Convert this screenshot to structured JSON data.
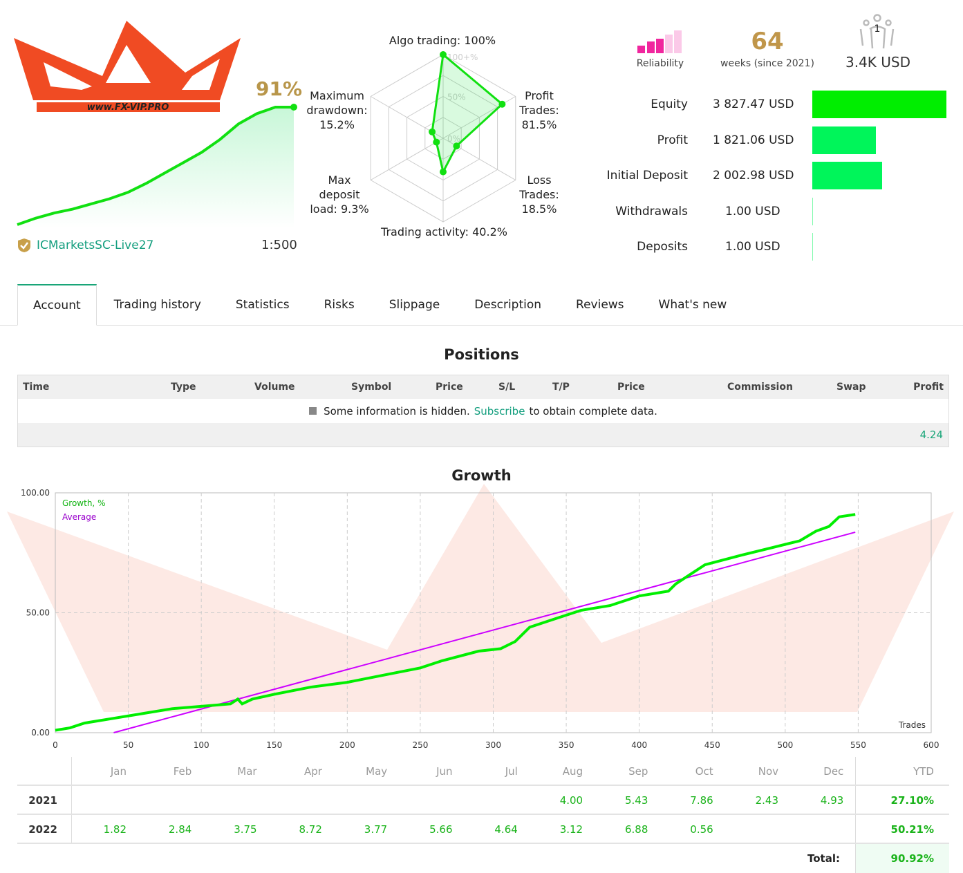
{
  "logo": {
    "text": "WWW.FX-VIP.PRO"
  },
  "summary": {
    "growth_pct": "91%",
    "broker": "ICMarketsSC-Live27",
    "leverage": "1:500",
    "sparkline_values": [
      0,
      5,
      9,
      12,
      16,
      20,
      25,
      32,
      40,
      48,
      56,
      66,
      78,
      86,
      91,
      91
    ]
  },
  "radar": {
    "labels": {
      "algo": "Algo trading: 100%",
      "profit": "Profit Trades: 81.5%",
      "loss": "Loss Trades: 18.5%",
      "activity": "Trading activity: 40.2%",
      "load": "Max deposit load: 9.3%",
      "drawdown": "Maximum drawdown: 15.2%"
    },
    "scale": [
      "100+%",
      "50%",
      "0%"
    ],
    "values": {
      "algo": 100,
      "profit": 81.5,
      "loss": 18.5,
      "activity": 40.2,
      "load": 9.3,
      "drawdown": 15.2
    }
  },
  "stats": {
    "reliability_label": "Reliability",
    "reliability_level": 3,
    "weeks": "64",
    "weeks_label": "weeks (since 2021)",
    "subscribers": "1",
    "funds": "3.4K USD"
  },
  "financials": [
    {
      "label": "Equity",
      "value": "3 827.47 USD",
      "fraction": 1.0,
      "color": "#00ee00"
    },
    {
      "label": "Profit",
      "value": "1 821.06 USD",
      "fraction": 0.476,
      "color": "#00f55a"
    },
    {
      "label": "Initial Deposit",
      "value": "2 002.98 USD",
      "fraction": 0.523,
      "color": "#00f55a"
    },
    {
      "label": "Withdrawals",
      "value": "1.00 USD",
      "fraction": 0.0003,
      "color": "#00f55a"
    },
    {
      "label": "Deposits",
      "value": "1.00 USD",
      "fraction": 0.0003,
      "color": "#00f55a"
    }
  ],
  "tabs": [
    "Account",
    "Trading history",
    "Statistics",
    "Risks",
    "Slippage",
    "Description",
    "Reviews",
    "What's new"
  ],
  "positions": {
    "title": "Positions",
    "columns": [
      "Time",
      "Type",
      "Volume",
      "Symbol",
      "Price",
      "S/L",
      "T/P",
      "Price",
      "Commission",
      "Swap",
      "Profit"
    ],
    "info_pre": "Some information is hidden.",
    "info_link": "Subscribe",
    "info_post": "to obtain complete data.",
    "total": "4.24"
  },
  "chart_data": {
    "type": "line",
    "title": "Growth",
    "xlabel": "Trades",
    "ylabel": "",
    "xlim": [
      0,
      600
    ],
    "ylim": [
      0,
      100
    ],
    "x_ticks": [
      "0",
      "50",
      "100",
      "150",
      "200",
      "250",
      "300",
      "350",
      "400",
      "450",
      "500",
      "550",
      "600"
    ],
    "y_ticks": [
      "0.00",
      "50.00",
      "100.00"
    ],
    "legend": [
      "Growth, %",
      "Average"
    ],
    "legend_placement": "top-left",
    "series": [
      {
        "name": "Growth, %",
        "color": "#00ee00",
        "points": [
          [
            0,
            1
          ],
          [
            10,
            2
          ],
          [
            20,
            4
          ],
          [
            40,
            6
          ],
          [
            60,
            8
          ],
          [
            80,
            10
          ],
          [
            100,
            11
          ],
          [
            120,
            12
          ],
          [
            125,
            14
          ],
          [
            128,
            12
          ],
          [
            135,
            14
          ],
          [
            150,
            16
          ],
          [
            175,
            19
          ],
          [
            200,
            21
          ],
          [
            225,
            24
          ],
          [
            250,
            27
          ],
          [
            265,
            30
          ],
          [
            290,
            34
          ],
          [
            305,
            35
          ],
          [
            315,
            38
          ],
          [
            325,
            44
          ],
          [
            340,
            47
          ],
          [
            360,
            51
          ],
          [
            380,
            53
          ],
          [
            400,
            57
          ],
          [
            420,
            59
          ],
          [
            425,
            62
          ],
          [
            435,
            66
          ],
          [
            445,
            70
          ],
          [
            470,
            74
          ],
          [
            490,
            77
          ],
          [
            510,
            80
          ],
          [
            521,
            84
          ],
          [
            530,
            86
          ],
          [
            537,
            90
          ],
          [
            548,
            91
          ]
        ]
      },
      {
        "name": "Average",
        "color": "#cc00ff",
        "points": [
          [
            40,
            0
          ],
          [
            548,
            83.6
          ]
        ]
      }
    ]
  },
  "monthly": {
    "months": [
      "Jan",
      "Feb",
      "Mar",
      "Apr",
      "May",
      "Jun",
      "Jul",
      "Aug",
      "Sep",
      "Oct",
      "Nov",
      "Dec"
    ],
    "ytd_label": "YTD",
    "rows": [
      {
        "year": "2021",
        "values": [
          "",
          "",
          "",
          "",
          "",
          "",
          "",
          "4.00",
          "5.43",
          "7.86",
          "2.43",
          "4.93"
        ],
        "ytd": "27.10%"
      },
      {
        "year": "2022",
        "values": [
          "1.82",
          "2.84",
          "3.75",
          "8.72",
          "3.77",
          "5.66",
          "4.64",
          "3.12",
          "6.88",
          "0.56",
          "",
          ""
        ],
        "ytd": "50.21%"
      }
    ],
    "total_label": "Total:",
    "total": "90.92%"
  }
}
